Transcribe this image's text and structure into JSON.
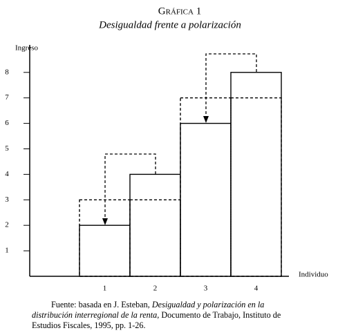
{
  "chart_data": {
    "type": "bar",
    "title": "Gráfica 1",
    "subtitle": "Desigualdad frente a polarización",
    "y_label": "Ingreso",
    "x_label": "Individuo",
    "categories": [
      "1",
      "2",
      "3",
      "4"
    ],
    "series": [
      {
        "values": [
          2,
          4,
          6,
          8
        ],
        "color": "#000000",
        "style": "solid"
      },
      {
        "values": [
          3,
          3,
          7,
          7
        ],
        "color": "#000000",
        "style": "dashed"
      }
    ],
    "ylim": [
      0,
      9
    ],
    "yticks": [
      1,
      2,
      3,
      4,
      5,
      6,
      7,
      8
    ],
    "grid": false,
    "source": {
      "prefix": "Fuente: basada en J. Esteban, ",
      "title": "Desigualdad y polarización en la distribución interregional de la renta",
      "suffix": ", Documento de Trabajo, Instituto de Estudios Fiscales, 1995, pp. 1-26."
    }
  }
}
